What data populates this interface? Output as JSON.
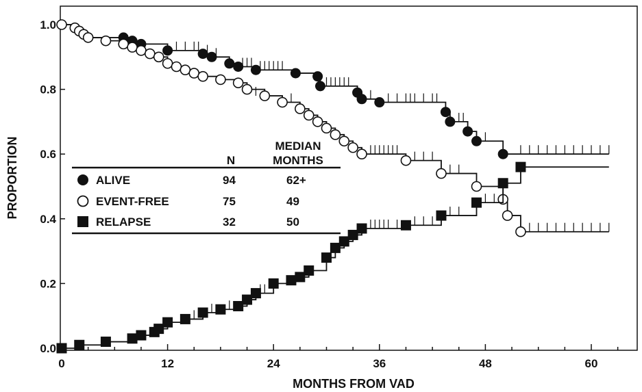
{
  "chart_data": {
    "type": "line",
    "title": "",
    "xlabel": "MONTHS FROM VAD",
    "ylabel": "PROPORTION",
    "xlim": [
      0,
      64
    ],
    "ylim": [
      0,
      1.05
    ],
    "x_ticks": [
      0,
      12,
      24,
      36,
      48,
      60
    ],
    "y_ticks": [
      0.0,
      0.2,
      0.4,
      0.6,
      0.8,
      1.0
    ],
    "x_tick_labels": [
      "0",
      "12",
      "24",
      "36",
      "48",
      "60"
    ],
    "y_tick_labels": [
      "0.0",
      "0.2",
      "0.4",
      "0.6",
      "0.8",
      "1.0"
    ],
    "legend": {
      "placement": "center-left",
      "col_n": "N",
      "col_median_line1": "MEDIAN",
      "col_median_line2": "MONTHS",
      "rows": [
        {
          "label": "ALIVE",
          "n": "94",
          "median": "62+"
        },
        {
          "label": "EVENT-FREE",
          "n": "75",
          "median": "49"
        },
        {
          "label": "RELAPSE",
          "n": "32",
          "median": "50"
        }
      ]
    },
    "series": [
      {
        "name": "ALIVE",
        "marker": "filled-circle",
        "steps": [
          [
            0,
            1.0
          ],
          [
            1.5,
            0.99
          ],
          [
            2,
            0.98
          ],
          [
            2.5,
            0.97
          ],
          [
            3,
            0.96
          ],
          [
            7,
            0.96
          ],
          [
            8,
            0.95
          ],
          [
            9,
            0.94
          ],
          [
            12,
            0.92
          ],
          [
            16,
            0.91
          ],
          [
            17,
            0.9
          ],
          [
            19,
            0.88
          ],
          [
            20,
            0.87
          ],
          [
            22,
            0.86
          ],
          [
            26.5,
            0.85
          ],
          [
            29,
            0.84
          ],
          [
            29.3,
            0.81
          ],
          [
            33.5,
            0.79
          ],
          [
            34,
            0.77
          ],
          [
            36,
            0.76
          ],
          [
            43.5,
            0.73
          ],
          [
            44,
            0.7
          ],
          [
            46,
            0.67
          ],
          [
            47,
            0.64
          ],
          [
            50,
            0.6
          ],
          [
            62,
            0.6
          ]
        ],
        "events": [
          [
            0,
            1.0
          ],
          [
            1.5,
            0.99
          ],
          [
            2,
            0.98
          ],
          [
            2.5,
            0.97
          ],
          [
            3,
            0.96
          ],
          [
            7,
            0.96
          ],
          [
            8,
            0.95
          ],
          [
            9,
            0.94
          ],
          [
            12,
            0.92
          ],
          [
            16,
            0.91
          ],
          [
            17,
            0.9
          ],
          [
            19,
            0.88
          ],
          [
            20,
            0.87
          ],
          [
            22,
            0.86
          ],
          [
            26.5,
            0.85
          ],
          [
            29,
            0.84
          ],
          [
            29.3,
            0.81
          ],
          [
            33.5,
            0.79
          ],
          [
            34,
            0.77
          ],
          [
            36,
            0.76
          ],
          [
            43.5,
            0.73
          ],
          [
            44,
            0.7
          ],
          [
            46,
            0.67
          ],
          [
            47,
            0.64
          ],
          [
            50,
            0.6
          ]
        ],
        "censored": [
          [
            13,
            0.92
          ],
          [
            14,
            0.92
          ],
          [
            15,
            0.92
          ],
          [
            15.5,
            0.92
          ],
          [
            16.5,
            0.91
          ],
          [
            17.5,
            0.9
          ],
          [
            20.5,
            0.87
          ],
          [
            21,
            0.87
          ],
          [
            21.5,
            0.87
          ],
          [
            22.5,
            0.86
          ],
          [
            23,
            0.86
          ],
          [
            23.5,
            0.86
          ],
          [
            24,
            0.86
          ],
          [
            24.5,
            0.86
          ],
          [
            25,
            0.86
          ],
          [
            30,
            0.81
          ],
          [
            30.5,
            0.81
          ],
          [
            31,
            0.81
          ],
          [
            31.5,
            0.81
          ],
          [
            32,
            0.81
          ],
          [
            32.5,
            0.81
          ],
          [
            35,
            0.77
          ],
          [
            37,
            0.76
          ],
          [
            38,
            0.76
          ],
          [
            39,
            0.76
          ],
          [
            39.5,
            0.76
          ],
          [
            40,
            0.76
          ],
          [
            41,
            0.76
          ],
          [
            42,
            0.76
          ],
          [
            42.5,
            0.76
          ],
          [
            45,
            0.7
          ],
          [
            45.5,
            0.7
          ],
          [
            48,
            0.64
          ],
          [
            52,
            0.6
          ],
          [
            53,
            0.6
          ],
          [
            54,
            0.6
          ],
          [
            55,
            0.6
          ],
          [
            56,
            0.6
          ],
          [
            57,
            0.6
          ],
          [
            58,
            0.6
          ],
          [
            59,
            0.6
          ],
          [
            60,
            0.6
          ],
          [
            61,
            0.6
          ],
          [
            62,
            0.6
          ]
        ]
      },
      {
        "name": "EVENT-FREE",
        "marker": "open-circle",
        "steps": [
          [
            0,
            1.0
          ],
          [
            1.5,
            0.99
          ],
          [
            2,
            0.98
          ],
          [
            2.5,
            0.97
          ],
          [
            3,
            0.96
          ],
          [
            5,
            0.95
          ],
          [
            7,
            0.94
          ],
          [
            8,
            0.93
          ],
          [
            9,
            0.92
          ],
          [
            10,
            0.91
          ],
          [
            11,
            0.9
          ],
          [
            12,
            0.88
          ],
          [
            13,
            0.87
          ],
          [
            14,
            0.86
          ],
          [
            15,
            0.85
          ],
          [
            16,
            0.84
          ],
          [
            18,
            0.83
          ],
          [
            20,
            0.82
          ],
          [
            21,
            0.8
          ],
          [
            23,
            0.78
          ],
          [
            25,
            0.76
          ],
          [
            27,
            0.74
          ],
          [
            28,
            0.72
          ],
          [
            29,
            0.7
          ],
          [
            30,
            0.68
          ],
          [
            31,
            0.66
          ],
          [
            32,
            0.64
          ],
          [
            33,
            0.62
          ],
          [
            34,
            0.6
          ],
          [
            39,
            0.58
          ],
          [
            43,
            0.54
          ],
          [
            47,
            0.5
          ],
          [
            50,
            0.46
          ],
          [
            50.5,
            0.41
          ],
          [
            52,
            0.36
          ],
          [
            62,
            0.36
          ]
        ],
        "events": [
          [
            0,
            1.0
          ],
          [
            1.5,
            0.99
          ],
          [
            2,
            0.98
          ],
          [
            2.5,
            0.97
          ],
          [
            3,
            0.96
          ],
          [
            5,
            0.95
          ],
          [
            7,
            0.94
          ],
          [
            8,
            0.93
          ],
          [
            9,
            0.92
          ],
          [
            10,
            0.91
          ],
          [
            11,
            0.9
          ],
          [
            12,
            0.88
          ],
          [
            13,
            0.87
          ],
          [
            14,
            0.86
          ],
          [
            15,
            0.85
          ],
          [
            16,
            0.84
          ],
          [
            18,
            0.83
          ],
          [
            20,
            0.82
          ],
          [
            21,
            0.8
          ],
          [
            23,
            0.78
          ],
          [
            25,
            0.76
          ],
          [
            27,
            0.74
          ],
          [
            28,
            0.72
          ],
          [
            29,
            0.7
          ],
          [
            30,
            0.68
          ],
          [
            31,
            0.66
          ],
          [
            32,
            0.64
          ],
          [
            33,
            0.62
          ],
          [
            34,
            0.6
          ],
          [
            39,
            0.58
          ],
          [
            43,
            0.54
          ],
          [
            47,
            0.5
          ],
          [
            50,
            0.46
          ],
          [
            50.5,
            0.41
          ],
          [
            52,
            0.36
          ]
        ],
        "censored": [
          [
            22,
            0.78
          ],
          [
            26,
            0.76
          ],
          [
            35,
            0.6
          ],
          [
            35.5,
            0.6
          ],
          [
            36,
            0.6
          ],
          [
            36.5,
            0.6
          ],
          [
            37,
            0.6
          ],
          [
            37.5,
            0.6
          ],
          [
            38,
            0.6
          ],
          [
            40,
            0.58
          ],
          [
            41,
            0.58
          ],
          [
            42,
            0.58
          ],
          [
            44,
            0.54
          ],
          [
            45,
            0.54
          ],
          [
            53,
            0.36
          ],
          [
            54,
            0.36
          ],
          [
            55,
            0.36
          ],
          [
            56,
            0.36
          ],
          [
            57,
            0.36
          ],
          [
            58,
            0.36
          ],
          [
            59,
            0.36
          ],
          [
            60,
            0.36
          ],
          [
            61,
            0.36
          ],
          [
            62,
            0.36
          ]
        ]
      },
      {
        "name": "RELAPSE",
        "marker": "filled-square",
        "steps": [
          [
            0,
            0.0
          ],
          [
            2,
            0.01
          ],
          [
            5,
            0.02
          ],
          [
            8,
            0.03
          ],
          [
            9,
            0.04
          ],
          [
            10.5,
            0.05
          ],
          [
            11,
            0.06
          ],
          [
            12,
            0.08
          ],
          [
            14,
            0.09
          ],
          [
            16,
            0.11
          ],
          [
            18,
            0.12
          ],
          [
            20,
            0.13
          ],
          [
            21,
            0.15
          ],
          [
            22,
            0.17
          ],
          [
            24,
            0.2
          ],
          [
            26,
            0.21
          ],
          [
            27,
            0.22
          ],
          [
            28,
            0.24
          ],
          [
            30,
            0.28
          ],
          [
            31,
            0.31
          ],
          [
            32,
            0.33
          ],
          [
            33,
            0.35
          ],
          [
            34,
            0.37
          ],
          [
            39,
            0.38
          ],
          [
            43,
            0.41
          ],
          [
            47,
            0.45
          ],
          [
            50,
            0.51
          ],
          [
            52,
            0.56
          ],
          [
            62,
            0.56
          ]
        ],
        "events": [
          [
            0,
            0.0
          ],
          [
            2,
            0.01
          ],
          [
            5,
            0.02
          ],
          [
            8,
            0.03
          ],
          [
            9,
            0.04
          ],
          [
            10.5,
            0.05
          ],
          [
            11,
            0.06
          ],
          [
            12,
            0.08
          ],
          [
            14,
            0.09
          ],
          [
            16,
            0.11
          ],
          [
            18,
            0.12
          ],
          [
            20,
            0.13
          ],
          [
            21,
            0.15
          ],
          [
            22,
            0.17
          ],
          [
            24,
            0.2
          ],
          [
            26,
            0.21
          ],
          [
            27,
            0.22
          ],
          [
            28,
            0.24
          ],
          [
            30,
            0.28
          ],
          [
            31,
            0.31
          ],
          [
            32,
            0.33
          ],
          [
            33,
            0.35
          ],
          [
            34,
            0.37
          ],
          [
            39,
            0.38
          ],
          [
            43,
            0.41
          ],
          [
            47,
            0.45
          ],
          [
            50,
            0.51
          ],
          [
            52,
            0.56
          ]
        ],
        "censored": [
          [
            15,
            0.09
          ],
          [
            17,
            0.11
          ],
          [
            19,
            0.12
          ],
          [
            22.5,
            0.17
          ],
          [
            23,
            0.17
          ],
          [
            35,
            0.37
          ],
          [
            35.5,
            0.37
          ],
          [
            36,
            0.37
          ],
          [
            36.5,
            0.37
          ],
          [
            37,
            0.37
          ],
          [
            38,
            0.37
          ],
          [
            40,
            0.38
          ],
          [
            41,
            0.38
          ],
          [
            42,
            0.38
          ],
          [
            44,
            0.41
          ],
          [
            45,
            0.41
          ],
          [
            48,
            0.45
          ],
          [
            49,
            0.45
          ]
        ]
      }
    ]
  }
}
